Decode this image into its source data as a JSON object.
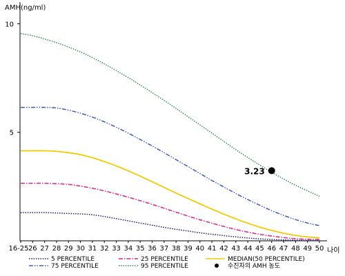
{
  "chart_data": {
    "type": "line",
    "ylabel": "AMH(ng/ml)",
    "xlabel": "나이",
    "x_ticks": [
      "16-25",
      "26",
      "27",
      "28",
      "29",
      "30",
      "31",
      "32",
      "33",
      "34",
      "35",
      "36",
      "37",
      "38",
      "39",
      "40",
      "41",
      "42",
      "43",
      "44",
      "45",
      "46",
      "47",
      "48",
      "49",
      "50"
    ],
    "y_ticks": [
      5,
      10
    ],
    "ylim": [
      0,
      11
    ],
    "grid": false,
    "legend_position": "bottom",
    "series": [
      {
        "name": "5 PERCENTILE",
        "color": "#1a1a6e",
        "dash": "dotted",
        "values": [
          1.3,
          1.3,
          1.3,
          1.28,
          1.26,
          1.24,
          1.2,
          1.12,
          1.02,
          0.92,
          0.82,
          0.72,
          0.62,
          0.53,
          0.45,
          0.37,
          0.3,
          0.24,
          0.18,
          0.13,
          0.09,
          0.06,
          0.04,
          0.03,
          0.02,
          0.02
        ]
      },
      {
        "name": "25 PERCENTILE",
        "color": "#e0218a",
        "dash": "dashdot",
        "values": [
          2.65,
          2.65,
          2.65,
          2.63,
          2.6,
          2.52,
          2.42,
          2.3,
          2.16,
          2.01,
          1.85,
          1.68,
          1.5,
          1.32,
          1.14,
          0.97,
          0.81,
          0.66,
          0.52,
          0.4,
          0.3,
          0.22,
          0.15,
          0.1,
          0.07,
          0.06
        ]
      },
      {
        "name": "MEDIAN(50 PERCENTILE)",
        "color": "#f2cc00",
        "dash": "solid",
        "values": [
          4.15,
          4.15,
          4.15,
          4.12,
          4.06,
          3.97,
          3.83,
          3.65,
          3.45,
          3.22,
          2.98,
          2.72,
          2.46,
          2.2,
          1.95,
          1.7,
          1.46,
          1.23,
          1.01,
          0.81,
          0.63,
          0.48,
          0.35,
          0.25,
          0.18,
          0.14
        ]
      },
      {
        "name": "75 PERCENTILE",
        "color": "#3a5bc7",
        "dash": "dashdotdot",
        "values": [
          6.15,
          6.15,
          6.15,
          6.12,
          6.02,
          5.88,
          5.7,
          5.48,
          5.23,
          4.96,
          4.67,
          4.37,
          4.06,
          3.74,
          3.42,
          3.1,
          2.78,
          2.48,
          2.18,
          1.9,
          1.64,
          1.39,
          1.17,
          0.98,
          0.82,
          0.7
        ]
      },
      {
        "name": "95 PERCENTILE",
        "color": "#2e8b57",
        "dash": "dotted",
        "values": [
          9.55,
          9.45,
          9.3,
          9.13,
          8.93,
          8.7,
          8.44,
          8.15,
          7.84,
          7.52,
          7.18,
          6.83,
          6.47,
          6.1,
          5.72,
          5.34,
          4.96,
          4.58,
          4.2,
          3.84,
          3.49,
          3.16,
          2.85,
          2.56,
          2.3,
          2.05
        ]
      }
    ],
    "annotation": {
      "x": "46",
      "y": 3.23,
      "label": "3.23",
      "legend_label": "수진자의 AMH 농도",
      "color": "#000000"
    }
  }
}
